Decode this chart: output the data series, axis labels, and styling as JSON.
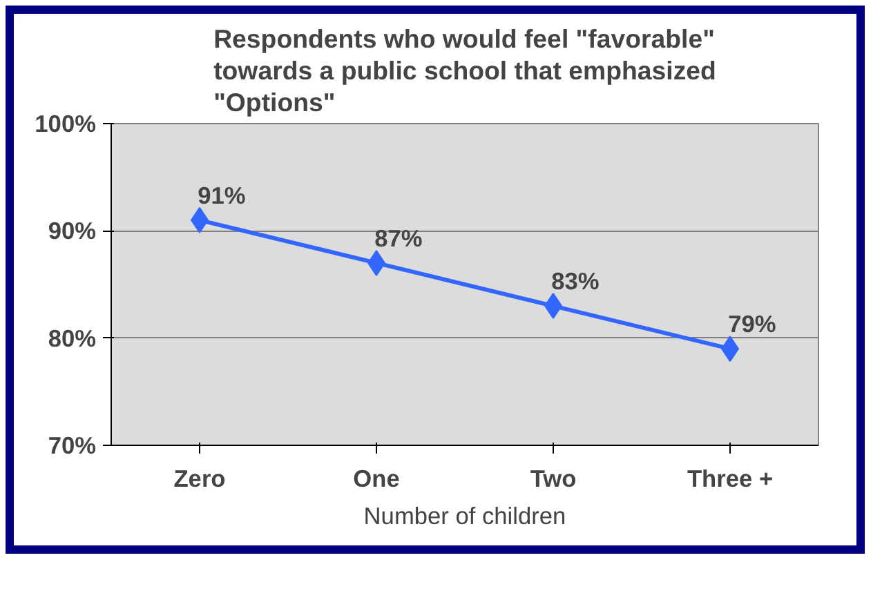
{
  "chart_data": {
    "type": "line",
    "title": "Respondents who would feel \"favorable\" towards a public school that emphasized \"Options\"",
    "xlabel": "Number of children",
    "categories": [
      "Zero",
      "One",
      "Two",
      "Three +"
    ],
    "series": [
      {
        "color": "#3366ff",
        "values": [
          91,
          87,
          83,
          79
        ]
      }
    ],
    "ylim": [
      70,
      100
    ],
    "yticks": [
      {
        "value": 70,
        "label": "70%"
      },
      {
        "value": 80,
        "label": "80%"
      },
      {
        "value": 90,
        "label": "90%"
      },
      {
        "value": 100,
        "label": "100%"
      }
    ],
    "value_labels": [
      "91%",
      "87%",
      "83%",
      "79%"
    ],
    "grid": "y",
    "marker": "diamond",
    "line_style": "solid"
  }
}
